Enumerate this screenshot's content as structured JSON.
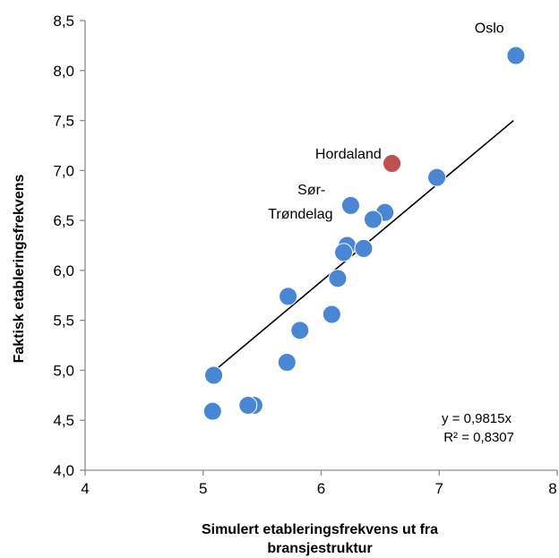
{
  "chart_data": {
    "type": "scatter",
    "xlabel_lines": [
      "Simulert etableringsfrekvens ut fra",
      "bransjestruktur"
    ],
    "ylabel": "Faktisk etableringsfrekvens",
    "xlim": [
      4,
      8
    ],
    "ylim": [
      4.0,
      8.5
    ],
    "x_ticks": [
      4,
      5,
      6,
      7,
      8
    ],
    "x_tick_labels": [
      "4",
      "5",
      "6",
      "7",
      "8"
    ],
    "y_ticks": [
      4.0,
      4.5,
      5.0,
      5.5,
      6.0,
      6.5,
      7.0,
      7.5,
      8.0,
      8.5
    ],
    "y_tick_labels": [
      "4,0",
      "4,5",
      "5,0",
      "5,5",
      "6,0",
      "6,5",
      "7,0",
      "7,5",
      "8,0",
      "8,5"
    ],
    "grid": false,
    "points": [
      {
        "x": 7.65,
        "y": 8.15,
        "color": "#4a86d6"
      },
      {
        "x": 6.6,
        "y": 7.07,
        "color": "#c0504d"
      },
      {
        "x": 6.98,
        "y": 6.93,
        "color": "#4a86d6"
      },
      {
        "x": 6.25,
        "y": 6.65,
        "color": "#4a86d6"
      },
      {
        "x": 6.54,
        "y": 6.58,
        "color": "#4a86d6"
      },
      {
        "x": 6.44,
        "y": 6.51,
        "color": "#4a86d6"
      },
      {
        "x": 6.22,
        "y": 6.25,
        "color": "#4a86d6"
      },
      {
        "x": 6.36,
        "y": 6.22,
        "color": "#4a86d6"
      },
      {
        "x": 6.19,
        "y": 6.18,
        "color": "#4a86d6"
      },
      {
        "x": 6.14,
        "y": 5.92,
        "color": "#4a86d6"
      },
      {
        "x": 5.72,
        "y": 5.74,
        "color": "#4a86d6"
      },
      {
        "x": 6.09,
        "y": 5.56,
        "color": "#4a86d6"
      },
      {
        "x": 5.82,
        "y": 5.4,
        "color": "#4a86d6"
      },
      {
        "x": 5.71,
        "y": 5.08,
        "color": "#4a86d6"
      },
      {
        "x": 5.09,
        "y": 4.95,
        "color": "#4a86d6"
      },
      {
        "x": 5.43,
        "y": 4.65,
        "color": "#4a86d6"
      },
      {
        "x": 5.38,
        "y": 4.65,
        "color": "#4a86d6"
      },
      {
        "x": 5.08,
        "y": 4.59,
        "color": "#4a86d6"
      }
    ],
    "trendline": {
      "x1": 5.08,
      "y1": 4.98,
      "x2": 7.63,
      "y2": 7.5,
      "color": "#000000"
    },
    "annotations": [
      {
        "text": "Oslo",
        "x": 7.3,
        "y": 8.38
      },
      {
        "text": "Hordaland",
        "x": 5.95,
        "y": 7.12
      },
      {
        "text": "Sør-",
        "x": 5.8,
        "y": 6.76
      },
      {
        "text": "Trøndelag",
        "x": 5.55,
        "y": 6.52
      }
    ],
    "equation": [
      "y = 0,9815x",
      "R² = 0,8307"
    ]
  }
}
